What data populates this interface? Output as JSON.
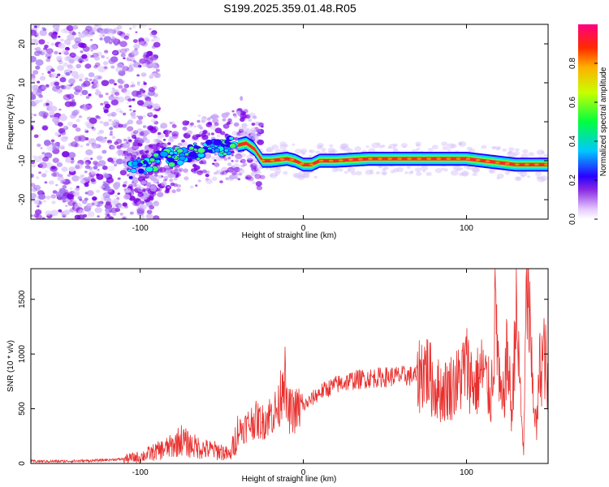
{
  "title": "S199.2025.359.01.48.R05",
  "chart_data": [
    {
      "type": "heatmap",
      "title": "S199.2025.359.01.48.R05",
      "xlabel": "Height of straight line (km)",
      "ylabel": "Frequency (Hz)",
      "xlim": [
        -167,
        150
      ],
      "ylim": [
        -25,
        25
      ],
      "xticks": [
        -100,
        0,
        100
      ],
      "xtick_labels": [
        "-100",
        "0",
        "100"
      ],
      "yticks": [
        -20,
        -10,
        0,
        10,
        20
      ],
      "ytick_labels": [
        "-20",
        "-10",
        "0",
        "10",
        "20"
      ],
      "colorbar": {
        "label": "Normalized spectral amplitude",
        "range": [
          0,
          1
        ],
        "ticks": [
          0.0,
          0.2,
          0.4,
          0.6,
          0.8
        ],
        "tick_labels": [
          "0.0",
          "0.2",
          "0.4",
          "0.6",
          "0.8"
        ]
      },
      "ridge": {
        "x": [
          -107,
          -100,
          -90,
          -80,
          -70,
          -60,
          -50,
          -40,
          -35,
          -30,
          -25,
          -20,
          -10,
          -5,
          0,
          5,
          10,
          20,
          40,
          60,
          80,
          100,
          110,
          120,
          130,
          140,
          150
        ],
        "y": [
          -12.5,
          -12,
          -10,
          -9,
          -8,
          -7,
          -6.5,
          -6,
          -5.5,
          -7,
          -10,
          -10,
          -9.5,
          -10,
          -11,
          -11,
          -10,
          -10,
          -9.5,
          -9.5,
          -9.5,
          -9.5,
          -10,
          -10.5,
          -11,
          -11,
          -11
        ]
      },
      "grid": false
    },
    {
      "type": "line",
      "xlabel": "Height of straight line (km)",
      "ylabel": "SNR (10 * v/v)",
      "xlim": [
        -167,
        150
      ],
      "ylim": [
        0,
        1780
      ],
      "xticks": [
        -100,
        0,
        100
      ],
      "xtick_labels": [
        "-100",
        "0",
        "100"
      ],
      "yticks": [
        0,
        500,
        1000,
        1500
      ],
      "ytick_labels": [
        "0",
        "500",
        "1000",
        "1500"
      ],
      "color": "#e8302e",
      "series": [
        {
          "x": [
            -167,
            -150,
            -130,
            -110,
            -100,
            -90,
            -80,
            -75,
            -70,
            -60,
            -50,
            -45,
            -40,
            -35,
            -30,
            -25,
            -20,
            -15,
            -12,
            -10,
            -5,
            0,
            10,
            20,
            30,
            40,
            50,
            60,
            70,
            75,
            80,
            85,
            90,
            95,
            100,
            105,
            110,
            115,
            118,
            120,
            122,
            125,
            128,
            130,
            135,
            137,
            140,
            143,
            145,
            148,
            150
          ],
          "values": [
            20,
            20,
            25,
            40,
            60,
            110,
            160,
            220,
            170,
            130,
            110,
            70,
            300,
            340,
            400,
            380,
            450,
            500,
            900,
            480,
            480,
            520,
            650,
            720,
            760,
            780,
            790,
            800,
            800,
            880,
            700,
            650,
            700,
            750,
            900,
            700,
            850,
            600,
            1450,
            700,
            500,
            1000,
            400,
            1450,
            100,
            1780,
            800,
            300,
            900,
            1000,
            600
          ]
        }
      ],
      "grid": false
    }
  ]
}
